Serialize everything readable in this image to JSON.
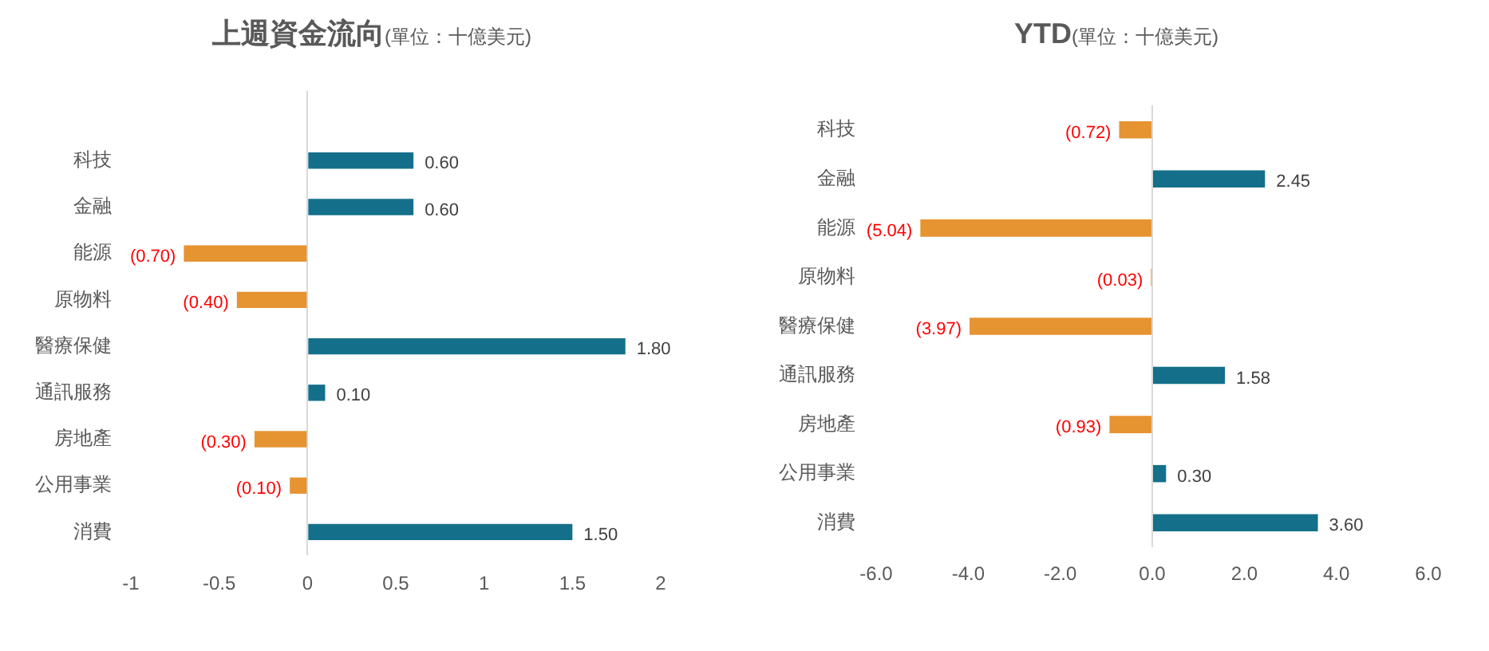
{
  "chart_data": [
    {
      "type": "bar",
      "orientation": "horizontal",
      "title": "上週資金流向",
      "subtitle": "(單位：十億美元)",
      "categories": [
        null,
        "科技",
        "金融",
        "能源",
        "原物料",
        "醫療保健",
        "通訊服務",
        "房地產",
        "公用事業",
        "消費"
      ],
      "values": [
        null,
        0.6,
        0.6,
        -0.7,
        -0.4,
        1.8,
        0.1,
        -0.3,
        -0.1,
        1.5
      ],
      "colors": [
        "#14708a",
        "#14708a",
        "#14708a",
        "#e69332",
        "#e69332",
        "#14708a",
        "#14708a",
        "#e69332",
        "#e69332",
        "#14708a"
      ],
      "value_labels": [
        null,
        "0.60",
        "0.60",
        "(0.70)",
        "(0.40)",
        "1.80",
        "0.10",
        "(0.30)",
        "(0.10)",
        "1.50"
      ],
      "xlim": [
        -1,
        2
      ],
      "xticks": [
        -1,
        -0.5,
        0,
        0.5,
        1,
        1.5,
        2
      ]
    },
    {
      "type": "bar",
      "orientation": "horizontal",
      "title": "YTD",
      "subtitle": "(單位：十億美元)",
      "categories": [
        "科技",
        "金融",
        "能源",
        "原物料",
        "醫療保健",
        "通訊服務",
        "房地產",
        "公用事業",
        "消費"
      ],
      "values": [
        -0.72,
        2.45,
        -5.04,
        -0.03,
        -3.97,
        1.58,
        -0.93,
        0.3,
        3.6
      ],
      "colors": [
        "#e69332",
        "#14708a",
        "#e69332",
        "#e69332",
        "#e69332",
        "#14708a",
        "#e69332",
        "#14708a",
        "#14708a"
      ],
      "value_labels": [
        "(0.72)",
        "2.45",
        "(5.04)",
        "(0.03)",
        "(3.97)",
        "1.58",
        "(0.93)",
        "0.30",
        "3.60"
      ],
      "xlim": [
        -6,
        6
      ],
      "xticks": [
        {
          "value": -6,
          "label": "-6.0"
        },
        {
          "value": -4,
          "label": "-4.0"
        },
        {
          "value": -2,
          "label": "-2.0"
        },
        {
          "value": 0,
          "label": "0.0"
        },
        {
          "value": 2,
          "label": "2.0"
        },
        {
          "value": 4,
          "label": "4.0"
        },
        {
          "value": 6,
          "label": "6.0"
        }
      ]
    }
  ]
}
